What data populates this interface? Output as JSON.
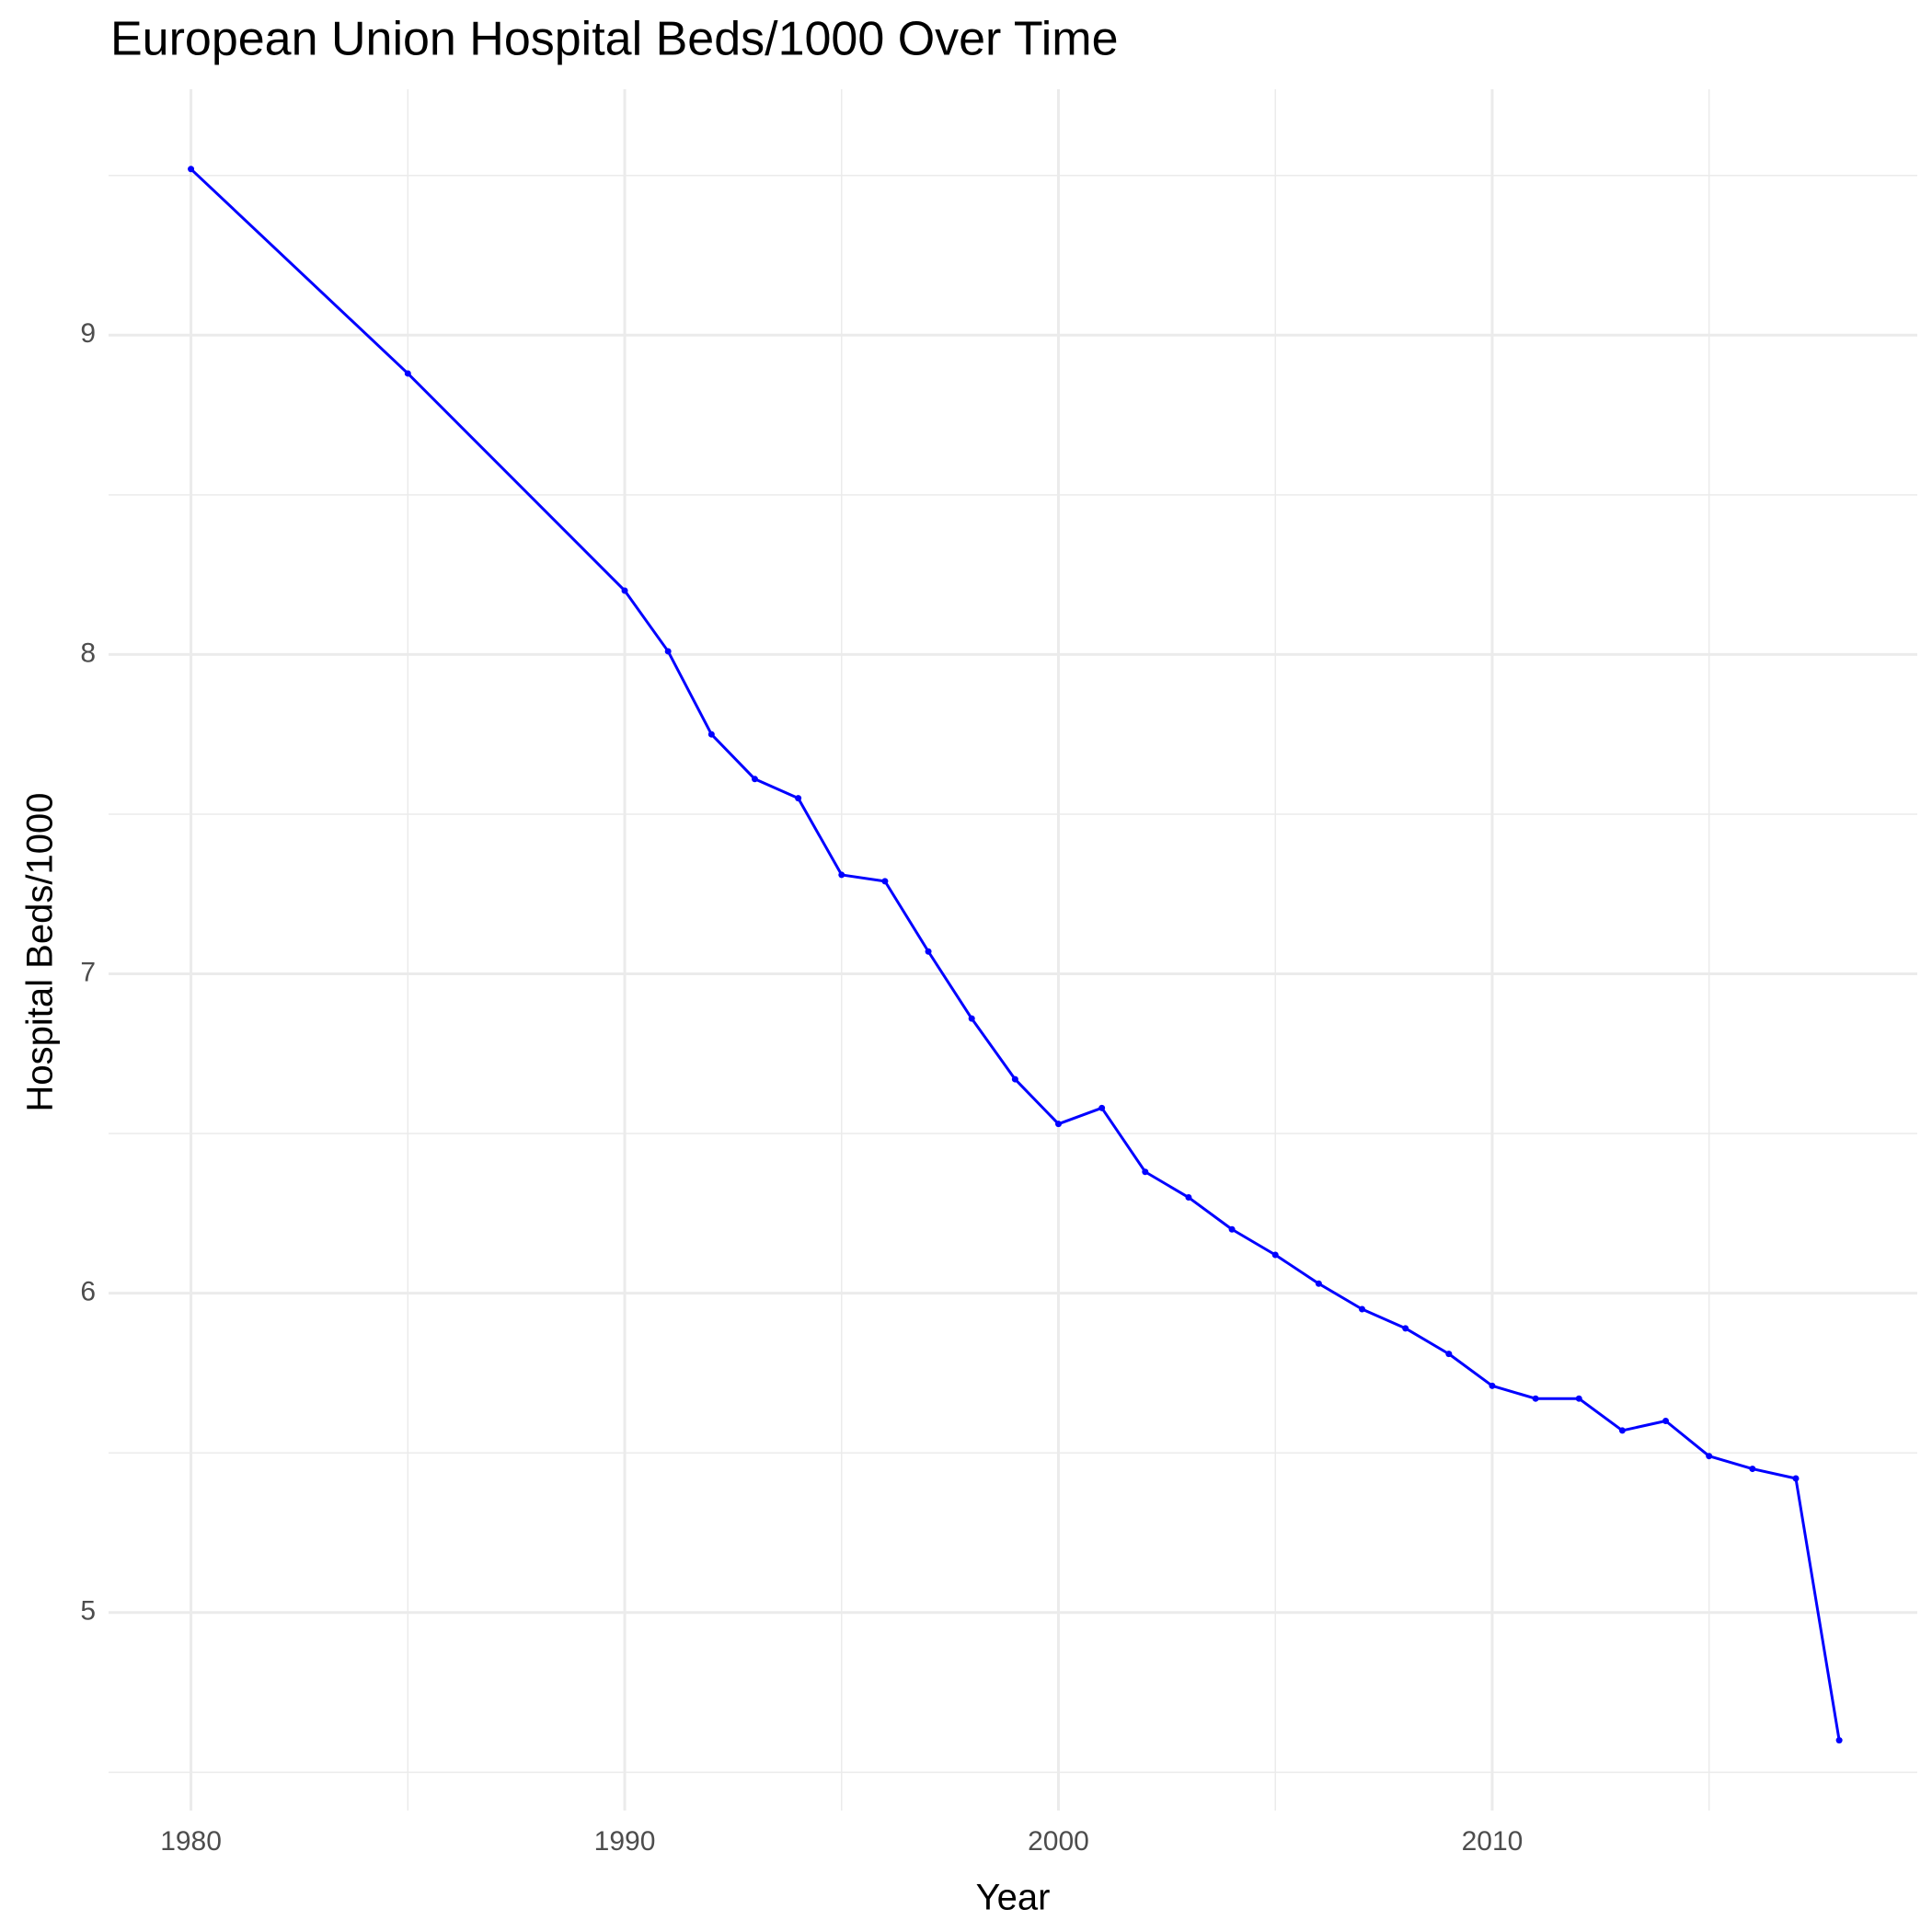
{
  "chart_data": {
    "type": "line",
    "title": "European Union Hospital Beds/1000 Over Time",
    "x_label": "Year",
    "y_label": "Hospital Beds/1000",
    "x": [
      1980,
      1985,
      1990,
      1991,
      1992,
      1993,
      1994,
      1995,
      1996,
      1997,
      1998,
      1999,
      2000,
      2001,
      2002,
      2003,
      2004,
      2005,
      2006,
      2007,
      2008,
      2009,
      2010,
      2011,
      2012,
      2013,
      2014,
      2015,
      2016,
      2017,
      2018
    ],
    "series": [
      {
        "name": "Hospital Beds/1000",
        "color": "#0000ff",
        "values": [
          9.52,
          8.88,
          8.2,
          8.01,
          7.75,
          7.61,
          7.55,
          7.31,
          7.29,
          7.07,
          6.86,
          6.67,
          6.53,
          6.58,
          6.38,
          6.3,
          6.2,
          6.12,
          6.03,
          5.95,
          5.89,
          5.81,
          5.71,
          5.67,
          5.67,
          5.57,
          5.6,
          5.49,
          5.45,
          5.42,
          4.6
        ]
      }
    ],
    "xlim": [
      1978.1,
      2019.8
    ],
    "xticks": [
      1980,
      1990,
      2000,
      2010
    ],
    "ylim": [
      4.38,
      9.77
    ],
    "yticks": [
      5,
      6,
      7,
      8,
      9
    ],
    "grid": true,
    "minor_grid": true
  }
}
